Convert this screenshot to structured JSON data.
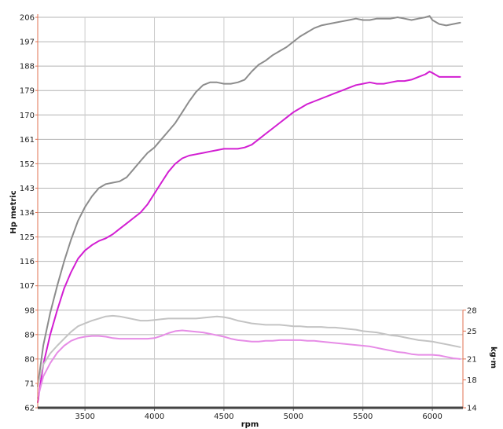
{
  "chart_data": {
    "type": "line",
    "xlabel": "rpm",
    "ylabel": "Hp metric",
    "y2label": "kg·m",
    "xlim": [
      3160,
      6220
    ],
    "ylim": [
      62,
      206
    ],
    "y2lim": [
      14,
      28
    ],
    "x_ticks": [
      3500,
      4000,
      4500,
      5000,
      5500,
      6000
    ],
    "y_ticks": [
      62,
      71,
      80,
      89,
      98,
      107,
      116,
      125,
      134,
      143,
      152,
      161,
      170,
      179,
      188,
      197,
      206
    ],
    "y2_ticks": [
      14,
      18,
      21,
      25,
      28
    ],
    "grid": true,
    "series": [
      {
        "axis": "left",
        "color": "#8c8c8c",
        "width": 2,
        "x": [
          3160,
          3200,
          3250,
          3300,
          3350,
          3400,
          3450,
          3500,
          3550,
          3600,
          3650,
          3700,
          3750,
          3800,
          3850,
          3900,
          3950,
          4000,
          4050,
          4100,
          4150,
          4200,
          4250,
          4300,
          4350,
          4400,
          4450,
          4500,
          4550,
          4600,
          4650,
          4700,
          4750,
          4800,
          4850,
          4900,
          4950,
          5000,
          5050,
          5100,
          5150,
          5200,
          5250,
          5300,
          5350,
          5400,
          5450,
          5500,
          5550,
          5600,
          5650,
          5700,
          5750,
          5800,
          5850,
          5900,
          5950,
          5980,
          6000,
          6050,
          6100,
          6150,
          6200
        ],
        "values": [
          70,
          85,
          97,
          107,
          116,
          124,
          131,
          136,
          140,
          143,
          144.5,
          145,
          145.5,
          147,
          150,
          153,
          156,
          158,
          161,
          164,
          167,
          171,
          175,
          178.5,
          181,
          182,
          182,
          181.5,
          181.5,
          182,
          183,
          186,
          188.5,
          190,
          192,
          193.5,
          195,
          197,
          199,
          200.5,
          202,
          203,
          203.5,
          204,
          204.5,
          205,
          205.5,
          205,
          205,
          205.5,
          205.5,
          205.5,
          206,
          205.5,
          205,
          205.5,
          206,
          206.5,
          205,
          203.5,
          203,
          203.5,
          204
        ]
      },
      {
        "axis": "left",
        "color": "#d21ed2",
        "width": 2,
        "x": [
          3160,
          3200,
          3250,
          3300,
          3350,
          3400,
          3450,
          3500,
          3550,
          3600,
          3650,
          3700,
          3750,
          3800,
          3850,
          3900,
          3950,
          4000,
          4050,
          4100,
          4150,
          4200,
          4250,
          4300,
          4350,
          4400,
          4450,
          4500,
          4550,
          4600,
          4650,
          4700,
          4750,
          4800,
          4850,
          4900,
          4950,
          5000,
          5050,
          5100,
          5150,
          5200,
          5250,
          5300,
          5350,
          5400,
          5450,
          5500,
          5550,
          5600,
          5650,
          5700,
          5750,
          5800,
          5850,
          5900,
          5950,
          5980,
          6000,
          6050,
          6100,
          6150,
          6200
        ],
        "values": [
          64,
          78,
          89,
          98,
          106,
          112,
          117,
          120,
          122,
          123.5,
          124.5,
          126,
          128,
          130,
          132,
          134,
          137,
          141,
          145,
          149,
          152,
          154,
          155,
          155.5,
          156,
          156.5,
          157,
          157.5,
          157.5,
          157.5,
          158,
          159,
          161,
          163,
          165,
          167,
          169,
          171,
          172.5,
          174,
          175,
          176,
          177,
          178,
          179,
          180,
          181,
          181.5,
          182,
          181.5,
          181.5,
          182,
          182.5,
          182.5,
          183,
          184,
          185,
          186,
          185.5,
          184,
          184,
          184,
          184
        ]
      },
      {
        "axis": "right",
        "color": "#c3c3c3",
        "width": 2,
        "x": [
          3160,
          3200,
          3250,
          3300,
          3350,
          3400,
          3450,
          3500,
          3550,
          3600,
          3650,
          3700,
          3750,
          3800,
          3850,
          3900,
          3950,
          4000,
          4050,
          4100,
          4150,
          4200,
          4250,
          4300,
          4350,
          4400,
          4450,
          4500,
          4550,
          4600,
          4650,
          4700,
          4750,
          4800,
          4850,
          4900,
          4950,
          5000,
          5050,
          5100,
          5150,
          5200,
          5250,
          5300,
          5350,
          5400,
          5450,
          5500,
          5550,
          5600,
          5650,
          5700,
          5750,
          5800,
          5850,
          5900,
          5950,
          6000,
          6050,
          6100,
          6150,
          6200
        ],
        "values": [
          17.2,
          20.2,
          21.8,
          22.9,
          23.9,
          24.9,
          25.7,
          26.1,
          26.5,
          26.8,
          27.1,
          27.2,
          27.1,
          26.9,
          26.7,
          26.5,
          26.5,
          26.6,
          26.7,
          26.8,
          26.8,
          26.8,
          26.8,
          26.8,
          26.9,
          27.0,
          27.1,
          27.0,
          26.8,
          26.5,
          26.3,
          26.1,
          26.0,
          25.9,
          25.9,
          25.9,
          25.8,
          25.7,
          25.7,
          25.6,
          25.6,
          25.6,
          25.5,
          25.5,
          25.4,
          25.3,
          25.2,
          25.0,
          24.9,
          24.8,
          24.6,
          24.4,
          24.3,
          24.1,
          23.9,
          23.7,
          23.6,
          23.5,
          23.3,
          23.1,
          22.9,
          22.7
        ]
      },
      {
        "axis": "right",
        "color": "#e68ce6",
        "width": 2,
        "x": [
          3160,
          3200,
          3250,
          3300,
          3350,
          3400,
          3450,
          3500,
          3550,
          3600,
          3650,
          3700,
          3750,
          3800,
          3850,
          3900,
          3950,
          4000,
          4050,
          4100,
          4150,
          4200,
          4250,
          4300,
          4350,
          4400,
          4450,
          4500,
          4550,
          4600,
          4650,
          4700,
          4750,
          4800,
          4850,
          4900,
          4950,
          5000,
          5050,
          5100,
          5150,
          5200,
          5250,
          5300,
          5350,
          5400,
          5450,
          5500,
          5550,
          5600,
          5650,
          5700,
          5750,
          5800,
          5850,
          5900,
          5950,
          6000,
          6050,
          6100,
          6150,
          6200
        ],
        "values": [
          15.4,
          18.5,
          20.4,
          21.9,
          22.9,
          23.6,
          24.0,
          24.2,
          24.3,
          24.3,
          24.2,
          24.0,
          23.9,
          23.9,
          23.9,
          23.9,
          23.9,
          24.0,
          24.3,
          24.7,
          25.0,
          25.1,
          25.0,
          24.9,
          24.8,
          24.6,
          24.4,
          24.2,
          23.9,
          23.7,
          23.6,
          23.5,
          23.5,
          23.6,
          23.6,
          23.7,
          23.7,
          23.7,
          23.7,
          23.6,
          23.6,
          23.5,
          23.4,
          23.3,
          23.2,
          23.1,
          23.0,
          22.9,
          22.8,
          22.6,
          22.4,
          22.2,
          22.0,
          21.9,
          21.7,
          21.6,
          21.6,
          21.6,
          21.5,
          21.3,
          21.1,
          21.0
        ]
      }
    ]
  }
}
